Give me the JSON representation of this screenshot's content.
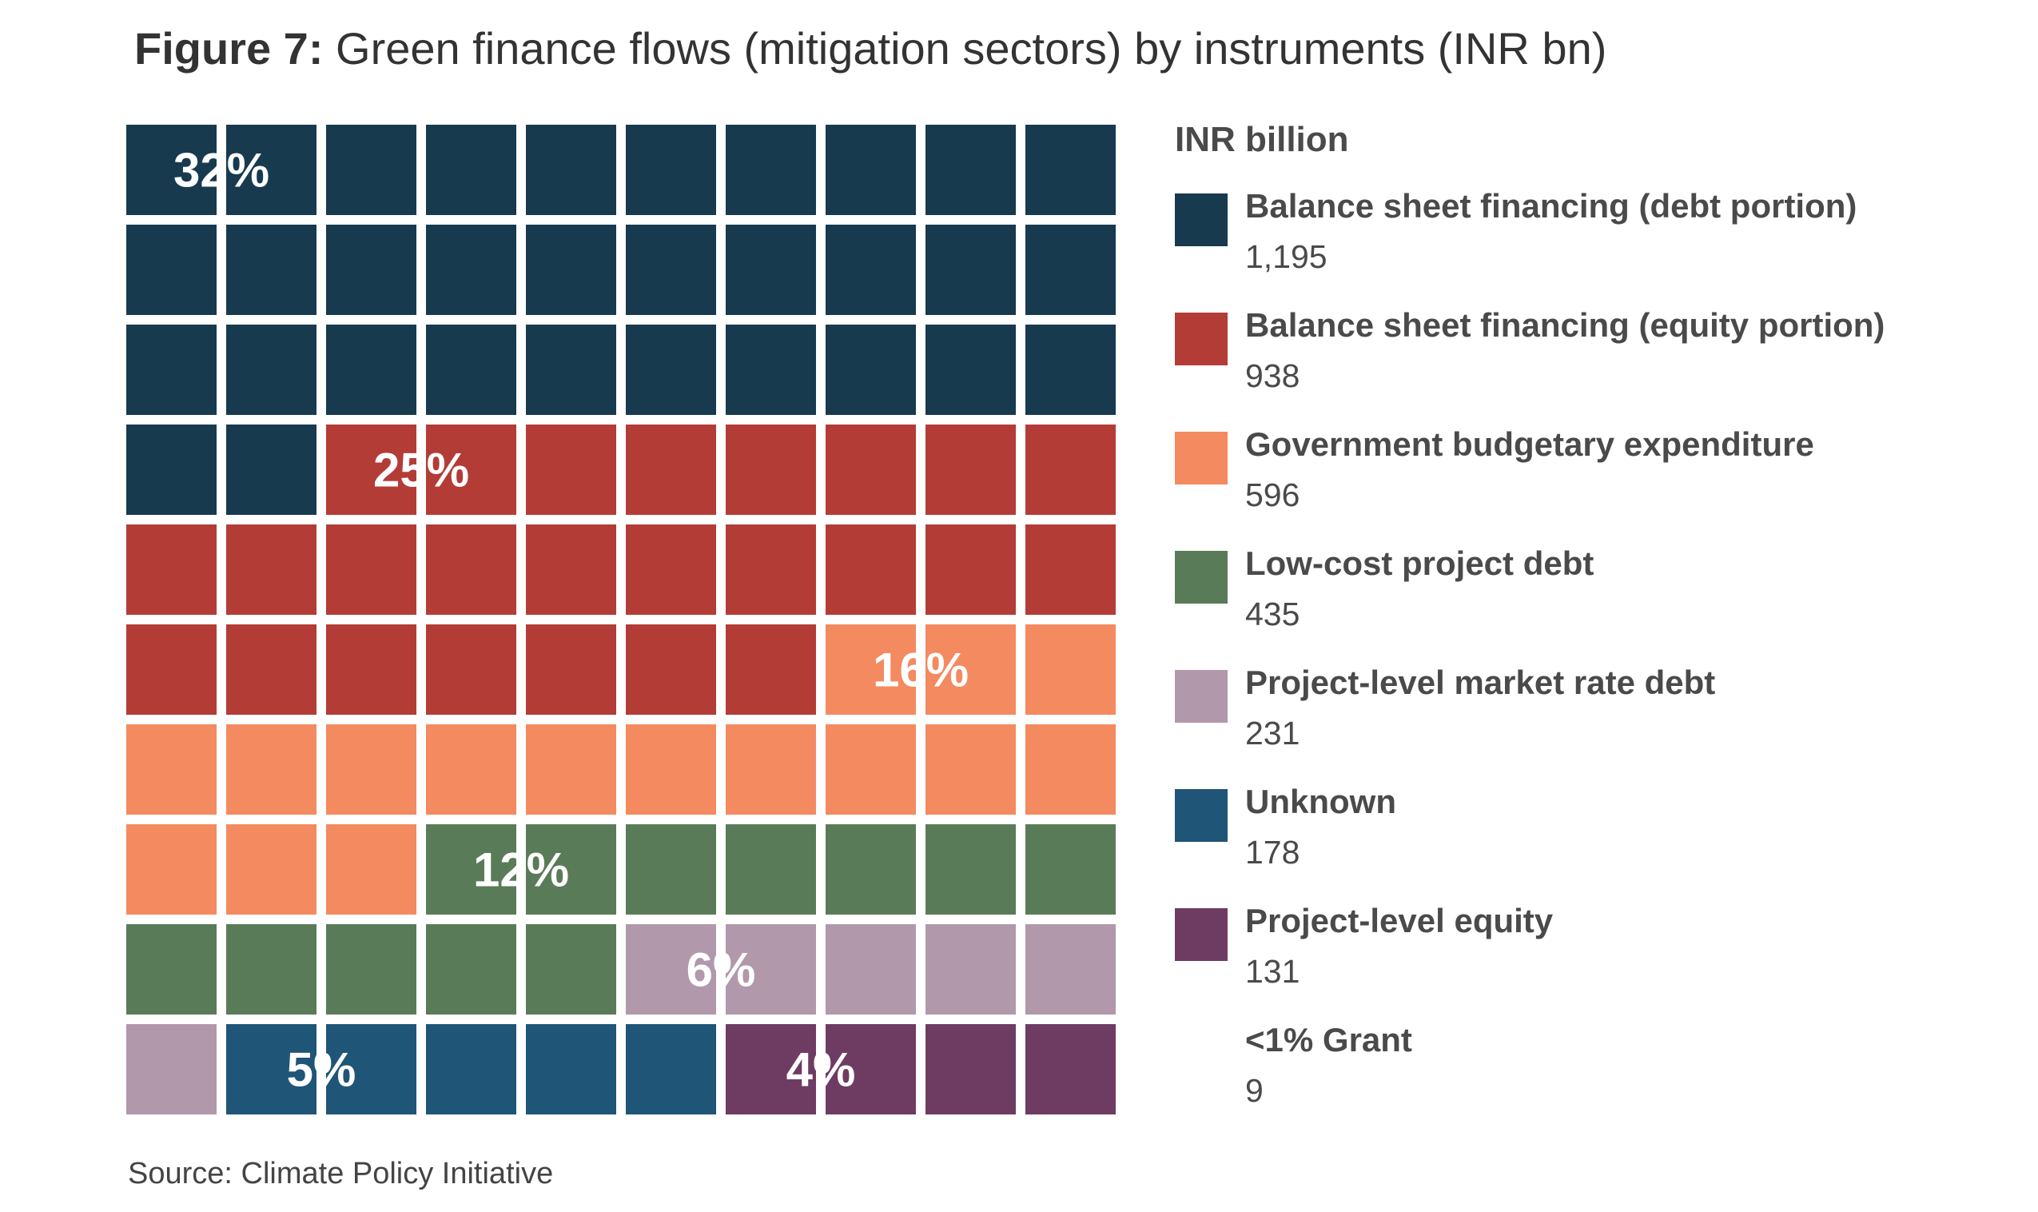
{
  "title": {
    "prefix": "Figure 7:",
    "text": "Green finance flows (mitigation sectors) by instruments (INR bn)"
  },
  "legend": {
    "heading": "INR billion"
  },
  "source": "Source: Climate Policy Initiative",
  "chart_data": {
    "type": "waffle",
    "unit": "INR billion",
    "grid": {
      "rows": 10,
      "cols": 10
    },
    "series": [
      {
        "name": "Balance sheet financing (debt portion)",
        "value": 1195,
        "value_label": "1,195",
        "share_label": "32%",
        "squares": 32,
        "color": "#173a4f"
      },
      {
        "name": "Balance sheet financing (equity portion)",
        "value": 938,
        "value_label": "938",
        "share_label": "25%",
        "squares": 25,
        "color": "#b43c36"
      },
      {
        "name": "Government budgetary expenditure",
        "value": 596,
        "value_label": "596",
        "share_label": "16%",
        "squares": 16,
        "color": "#f48a60"
      },
      {
        "name": "Low-cost project debt",
        "value": 435,
        "value_label": "435",
        "share_label": "12%",
        "squares": 12,
        "color": "#5a7b58"
      },
      {
        "name": "Project-level market rate debt",
        "value": 231,
        "value_label": "231",
        "share_label": "6%",
        "squares": 6,
        "color": "#b198ab"
      },
      {
        "name": "Unknown",
        "value": 178,
        "value_label": "178",
        "share_label": "5%",
        "squares": 5,
        "color": "#1f5577"
      },
      {
        "name": "Project-level equity",
        "value": 131,
        "value_label": "131",
        "share_label": "4%",
        "squares": 4,
        "color": "#6e3c63"
      },
      {
        "name": "<1% Grant",
        "value": 9,
        "value_label": "9",
        "share_label": "",
        "squares": 0,
        "color": ""
      }
    ]
  }
}
